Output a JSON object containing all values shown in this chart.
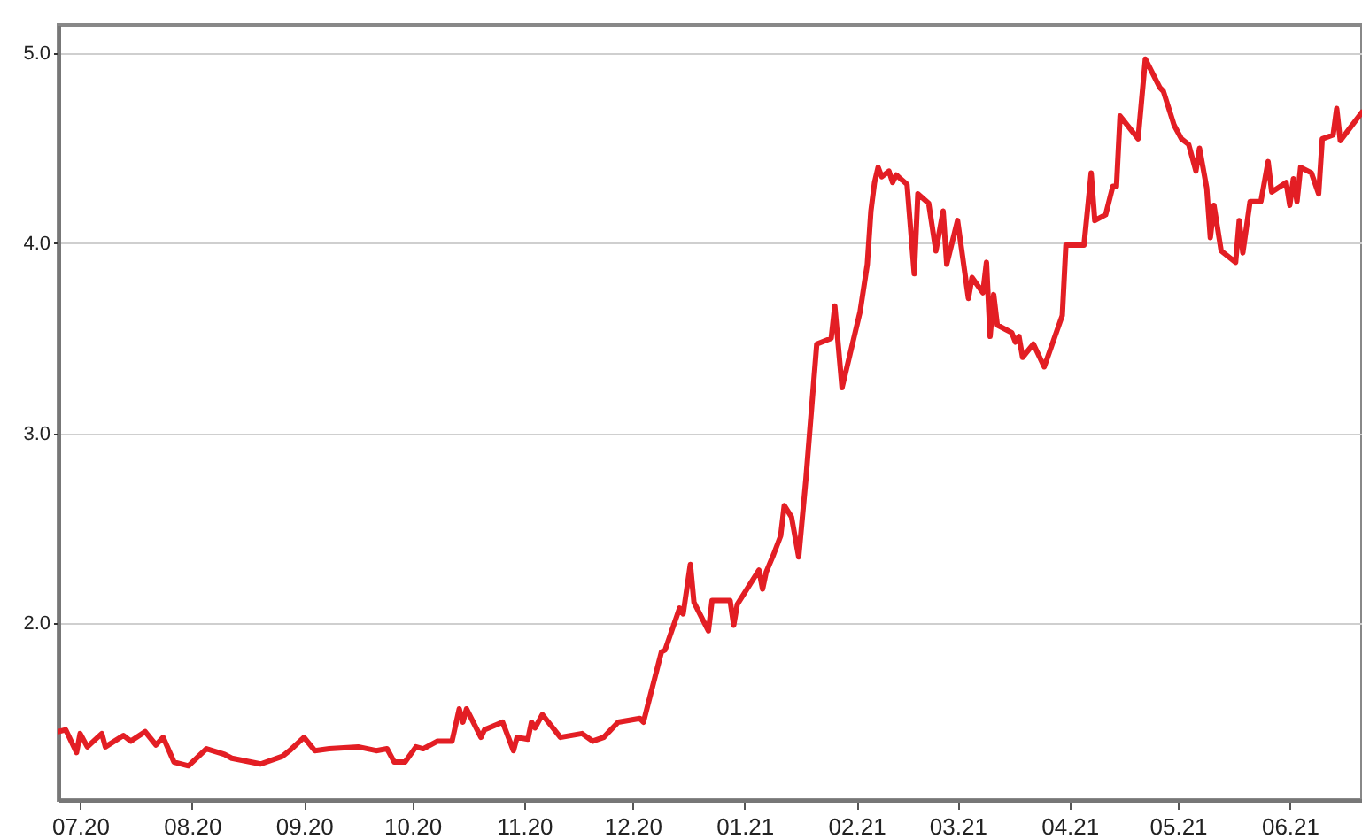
{
  "chart_data": {
    "type": "line",
    "x": [
      "2020-06-25",
      "2020-06-27",
      "2020-06-30",
      "2020-07-01",
      "2020-07-03",
      "2020-07-07",
      "2020-07-08",
      "2020-07-13",
      "2020-07-15",
      "2020-07-19",
      "2020-07-22",
      "2020-07-24",
      "2020-07-27",
      "2020-07-31",
      "2020-08-05",
      "2020-08-10",
      "2020-08-12",
      "2020-08-20",
      "2020-08-26",
      "2020-08-28",
      "2020-09-01",
      "2020-09-04",
      "2020-09-08",
      "2020-09-16",
      "2020-09-21",
      "2020-09-24",
      "2020-09-26",
      "2020-09-29",
      "2020-10-02",
      "2020-10-04",
      "2020-10-08",
      "2020-10-12",
      "2020-10-14",
      "2020-10-15",
      "2020-10-16",
      "2020-10-20",
      "2020-10-21",
      "2020-10-26",
      "2020-10-29",
      "2020-10-30",
      "2020-11-02",
      "2020-11-03",
      "2020-11-04",
      "2020-11-06",
      "2020-11-11",
      "2020-11-17",
      "2020-11-20",
      "2020-11-23",
      "2020-11-27",
      "2020-12-03",
      "2020-12-04",
      "2020-12-09",
      "2020-12-10",
      "2020-12-14",
      "2020-12-15",
      "2020-12-17",
      "2020-12-18",
      "2020-12-22",
      "2020-12-23",
      "2020-12-28",
      "2020-12-29",
      "2020-12-30",
      "2021-01-05",
      "2021-01-06",
      "2021-01-07",
      "2021-01-09",
      "2021-01-11",
      "2021-01-12",
      "2021-01-14",
      "2021-01-16",
      "2021-01-18",
      "2021-01-21",
      "2021-01-25",
      "2021-01-26",
      "2021-01-28",
      "2021-02-02",
      "2021-02-04",
      "2021-02-05",
      "2021-02-06",
      "2021-02-07",
      "2021-02-08",
      "2021-02-10",
      "2021-02-11",
      "2021-02-12",
      "2021-02-15",
      "2021-02-17",
      "2021-02-18",
      "2021-02-21",
      "2021-02-23",
      "2021-02-25",
      "2021-02-26",
      "2021-03-01",
      "2021-03-04",
      "2021-03-05",
      "2021-03-08",
      "2021-03-09",
      "2021-03-10",
      "2021-03-11",
      "2021-03-12",
      "2021-03-16",
      "2021-03-17",
      "2021-03-18",
      "2021-03-19",
      "2021-03-22",
      "2021-03-25",
      "2021-03-30",
      "2021-03-31",
      "2021-04-05",
      "2021-04-07",
      "2021-04-08",
      "2021-04-11",
      "2021-04-13",
      "2021-04-14",
      "2021-04-15",
      "2021-04-20",
      "2021-04-22",
      "2021-04-26",
      "2021-04-27",
      "2021-04-30",
      "2021-05-02",
      "2021-05-04",
      "2021-05-06",
      "2021-05-07",
      "2021-05-09",
      "2021-05-10",
      "2021-05-11",
      "2021-05-13",
      "2021-05-17",
      "2021-05-18",
      "2021-05-19",
      "2021-05-21",
      "2021-05-24",
      "2021-05-26",
      "2021-05-27",
      "2021-05-31",
      "2021-06-01",
      "2021-06-02",
      "2021-06-03",
      "2021-06-04",
      "2021-06-07",
      "2021-06-09",
      "2021-06-10",
      "2021-06-13",
      "2021-06-14",
      "2021-06-15",
      "2021-06-21"
    ],
    "series": [
      {
        "color": "#e31e24",
        "values": [
          1.43,
          1.44,
          1.32,
          1.42,
          1.35,
          1.42,
          1.35,
          1.41,
          1.38,
          1.43,
          1.36,
          1.4,
          1.27,
          1.25,
          1.34,
          1.31,
          1.29,
          1.26,
          1.3,
          1.33,
          1.4,
          1.33,
          1.34,
          1.35,
          1.33,
          1.34,
          1.27,
          1.27,
          1.35,
          1.34,
          1.38,
          1.38,
          1.55,
          1.48,
          1.55,
          1.4,
          1.44,
          1.48,
          1.33,
          1.4,
          1.39,
          1.48,
          1.45,
          1.52,
          1.4,
          1.42,
          1.38,
          1.4,
          1.48,
          1.5,
          1.48,
          1.85,
          1.86,
          2.08,
          2.05,
          2.31,
          2.11,
          1.96,
          2.12,
          2.12,
          1.99,
          2.1,
          2.28,
          2.18,
          2.27,
          2.36,
          2.46,
          2.62,
          2.56,
          2.35,
          2.76,
          3.47,
          3.5,
          3.67,
          3.24,
          3.64,
          3.89,
          4.17,
          4.32,
          4.4,
          4.35,
          4.38,
          4.32,
          4.36,
          4.31,
          3.84,
          4.26,
          4.21,
          3.96,
          4.17,
          3.89,
          4.12,
          3.71,
          3.82,
          3.74,
          3.9,
          3.51,
          3.73,
          3.57,
          3.53,
          3.48,
          3.51,
          3.4,
          3.47,
          3.35,
          3.62,
          3.99,
          3.99,
          4.37,
          4.12,
          4.15,
          4.3,
          4.3,
          4.67,
          4.55,
          4.97,
          4.82,
          4.8,
          4.62,
          4.55,
          4.52,
          4.38,
          4.5,
          4.29,
          4.03,
          4.2,
          3.96,
          3.9,
          4.12,
          3.95,
          4.22,
          4.22,
          4.43,
          4.27,
          4.32,
          4.2,
          4.34,
          4.22,
          4.4,
          4.37,
          4.26,
          4.55,
          4.57,
          4.71,
          4.54,
          4.69
        ]
      }
    ],
    "xlim": [
      "2020-06-25",
      "2021-06-21"
    ],
    "xticks": [
      {
        "value": "2020-07-01",
        "label": "07.20"
      },
      {
        "value": "2020-08-01",
        "label": "08.20"
      },
      {
        "value": "2020-09-01",
        "label": "09.20"
      },
      {
        "value": "2020-10-01",
        "label": "10.20"
      },
      {
        "value": "2020-11-01",
        "label": "11.20"
      },
      {
        "value": "2020-12-01",
        "label": "12.20"
      },
      {
        "value": "2021-01-01",
        "label": "01.21"
      },
      {
        "value": "2021-02-01",
        "label": "02.21"
      },
      {
        "value": "2021-03-01",
        "label": "03.21"
      },
      {
        "value": "2021-04-01",
        "label": "04.21"
      },
      {
        "value": "2021-05-01",
        "label": "05.21"
      },
      {
        "value": "2021-06-01",
        "label": "06.21"
      }
    ],
    "ylim": [
      1.07,
      5.15
    ],
    "yticks": [
      {
        "value": 2,
        "label": "2.0"
      },
      {
        "value": 3,
        "label": "3.0"
      },
      {
        "value": 4,
        "label": "4.0"
      },
      {
        "value": 5,
        "label": "5.0"
      }
    ],
    "grid": "y",
    "line_style": "solid"
  }
}
